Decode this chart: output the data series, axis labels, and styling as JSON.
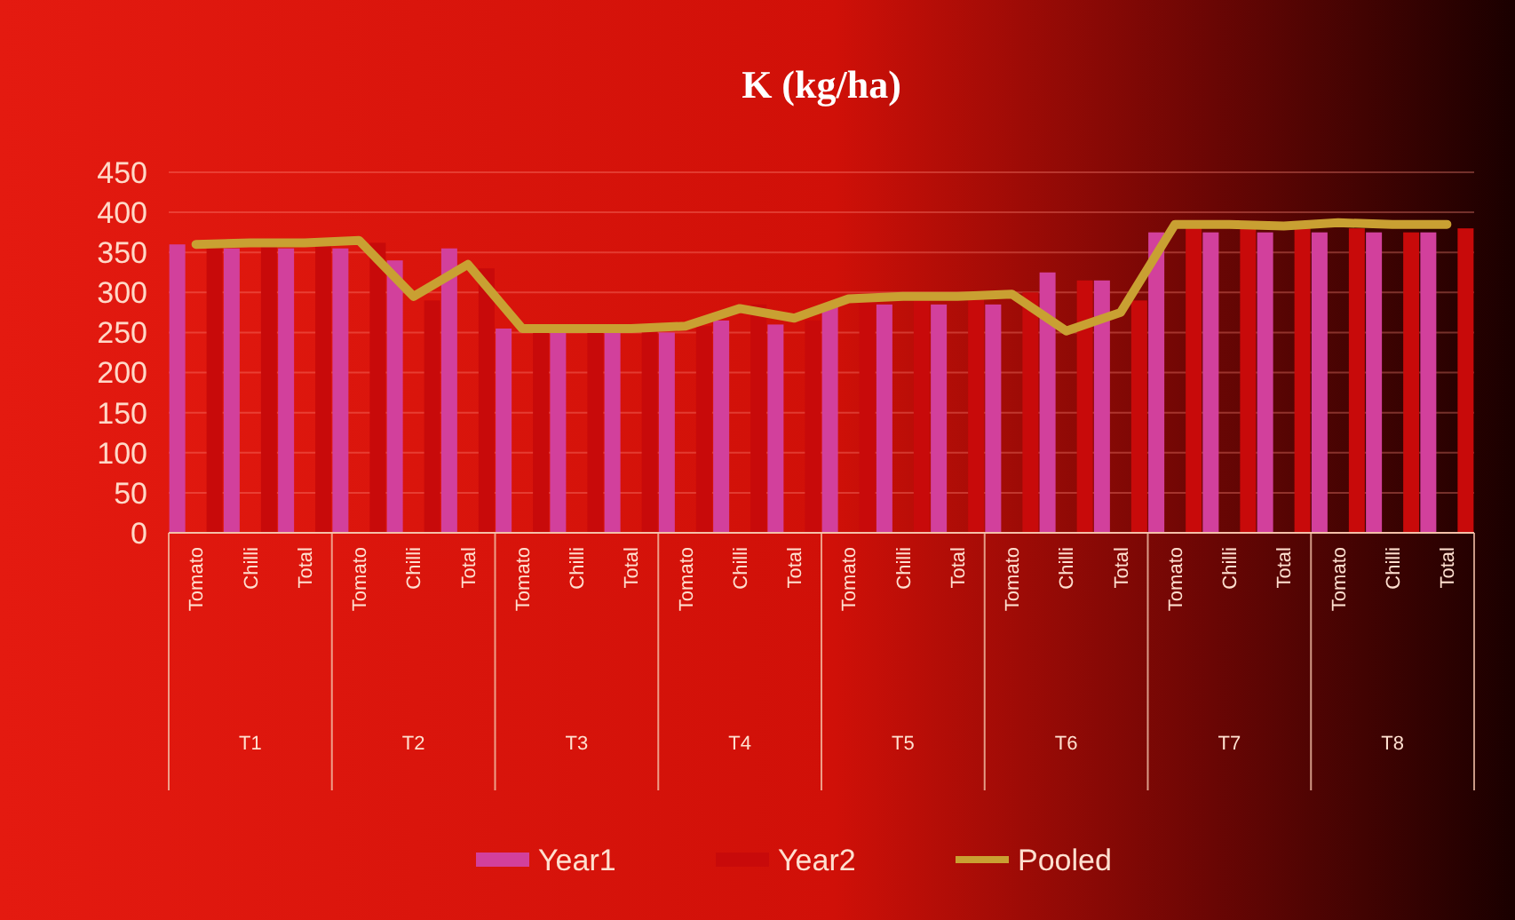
{
  "chart_data": {
    "type": "bar",
    "title": "K (kg/ha)",
    "categories": [
      "Tomato",
      "Chilli",
      "Total",
      "Tomato",
      "Chilli",
      "Total",
      "Tomato",
      "Chilli",
      "Total",
      "Tomato",
      "Chilli",
      "Total",
      "Tomato",
      "Chilli",
      "Total",
      "Tomato",
      "Chilli",
      "Total",
      "Tomato",
      "Chilli",
      "Total",
      "Tomato",
      "Chilli",
      "Total"
    ],
    "annotations": [
      "T1",
      "T2",
      "T3",
      "T4",
      "T5",
      "T6",
      "T7",
      "T8"
    ],
    "series": [
      {
        "name": "Year1",
        "color": "#d2409c",
        "values": [
          360,
          355,
          355,
          355,
          340,
          355,
          255,
          250,
          250,
          250,
          265,
          260,
          285,
          285,
          285,
          285,
          325,
          315,
          375,
          375,
          375,
          375,
          375,
          375
        ]
      },
      {
        "name": "Year2",
        "color": "#c80a0a",
        "values": [
          358,
          360,
          360,
          362,
          290,
          330,
          255,
          255,
          255,
          258,
          285,
          265,
          290,
          295,
          295,
          300,
          315,
          290,
          385,
          380,
          380,
          380,
          375,
          380
        ]
      },
      {
        "name": "Pooled",
        "type": "line",
        "color": "#c9a032",
        "values": [
          360,
          362,
          362,
          365,
          295,
          335,
          255,
          255,
          255,
          258,
          280,
          268,
          292,
          295,
          295,
          298,
          252,
          275,
          385,
          385,
          383,
          387,
          385,
          385
        ]
      }
    ],
    "ylim": [
      0,
      450
    ],
    "yticks": [
      0,
      50,
      100,
      150,
      200,
      250,
      300,
      350,
      400,
      450
    ],
    "grid": "y",
    "legend": "bottom",
    "marker": "none"
  }
}
